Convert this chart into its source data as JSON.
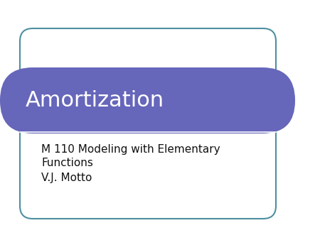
{
  "title": "Amortization",
  "subtitle_line1": "M 110 Modeling with Elementary",
  "subtitle_line1b": "Functions",
  "subtitle_line2": "V.J. Motto",
  "bg_color": "#ffffff",
  "header_color": "#6666bb",
  "header_text_color": "#ffffff",
  "body_text_color": "#111111",
  "border_color": "#4e8fa0",
  "title_fontsize": 22,
  "subtitle_fontsize": 11,
  "fig_width": 4.5,
  "fig_height": 3.38,
  "dpi": 100
}
